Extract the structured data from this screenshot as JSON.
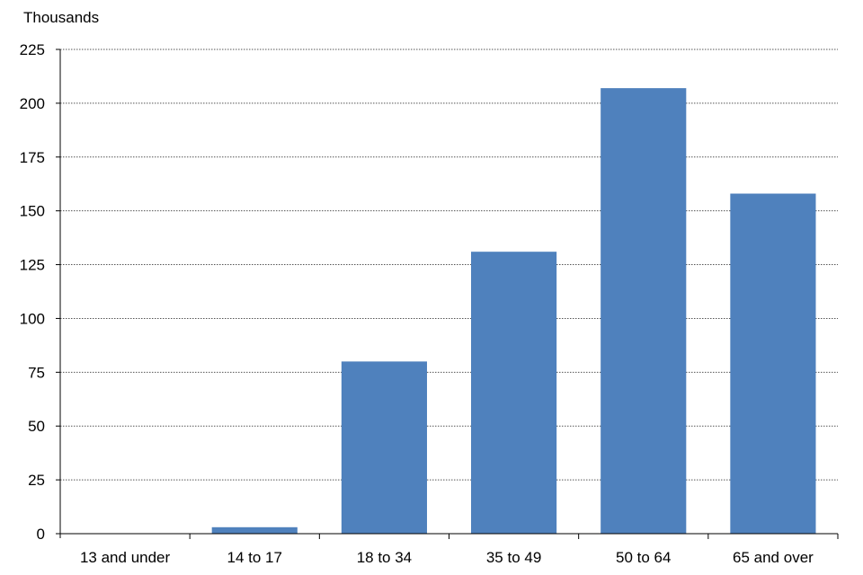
{
  "chart_data": {
    "type": "bar",
    "ylabel": "Thousands",
    "categories": [
      "13 and under",
      "14 to 17",
      "18 to 34",
      "35 to 49",
      "50 to 64",
      "65 and over"
    ],
    "values": [
      0,
      3,
      80,
      131,
      207,
      158
    ],
    "ylim": [
      0,
      225
    ],
    "yticks": [
      0,
      25,
      50,
      75,
      100,
      125,
      150,
      175,
      200,
      225
    ],
    "grid": true,
    "bar_color": "#4F81BD"
  }
}
